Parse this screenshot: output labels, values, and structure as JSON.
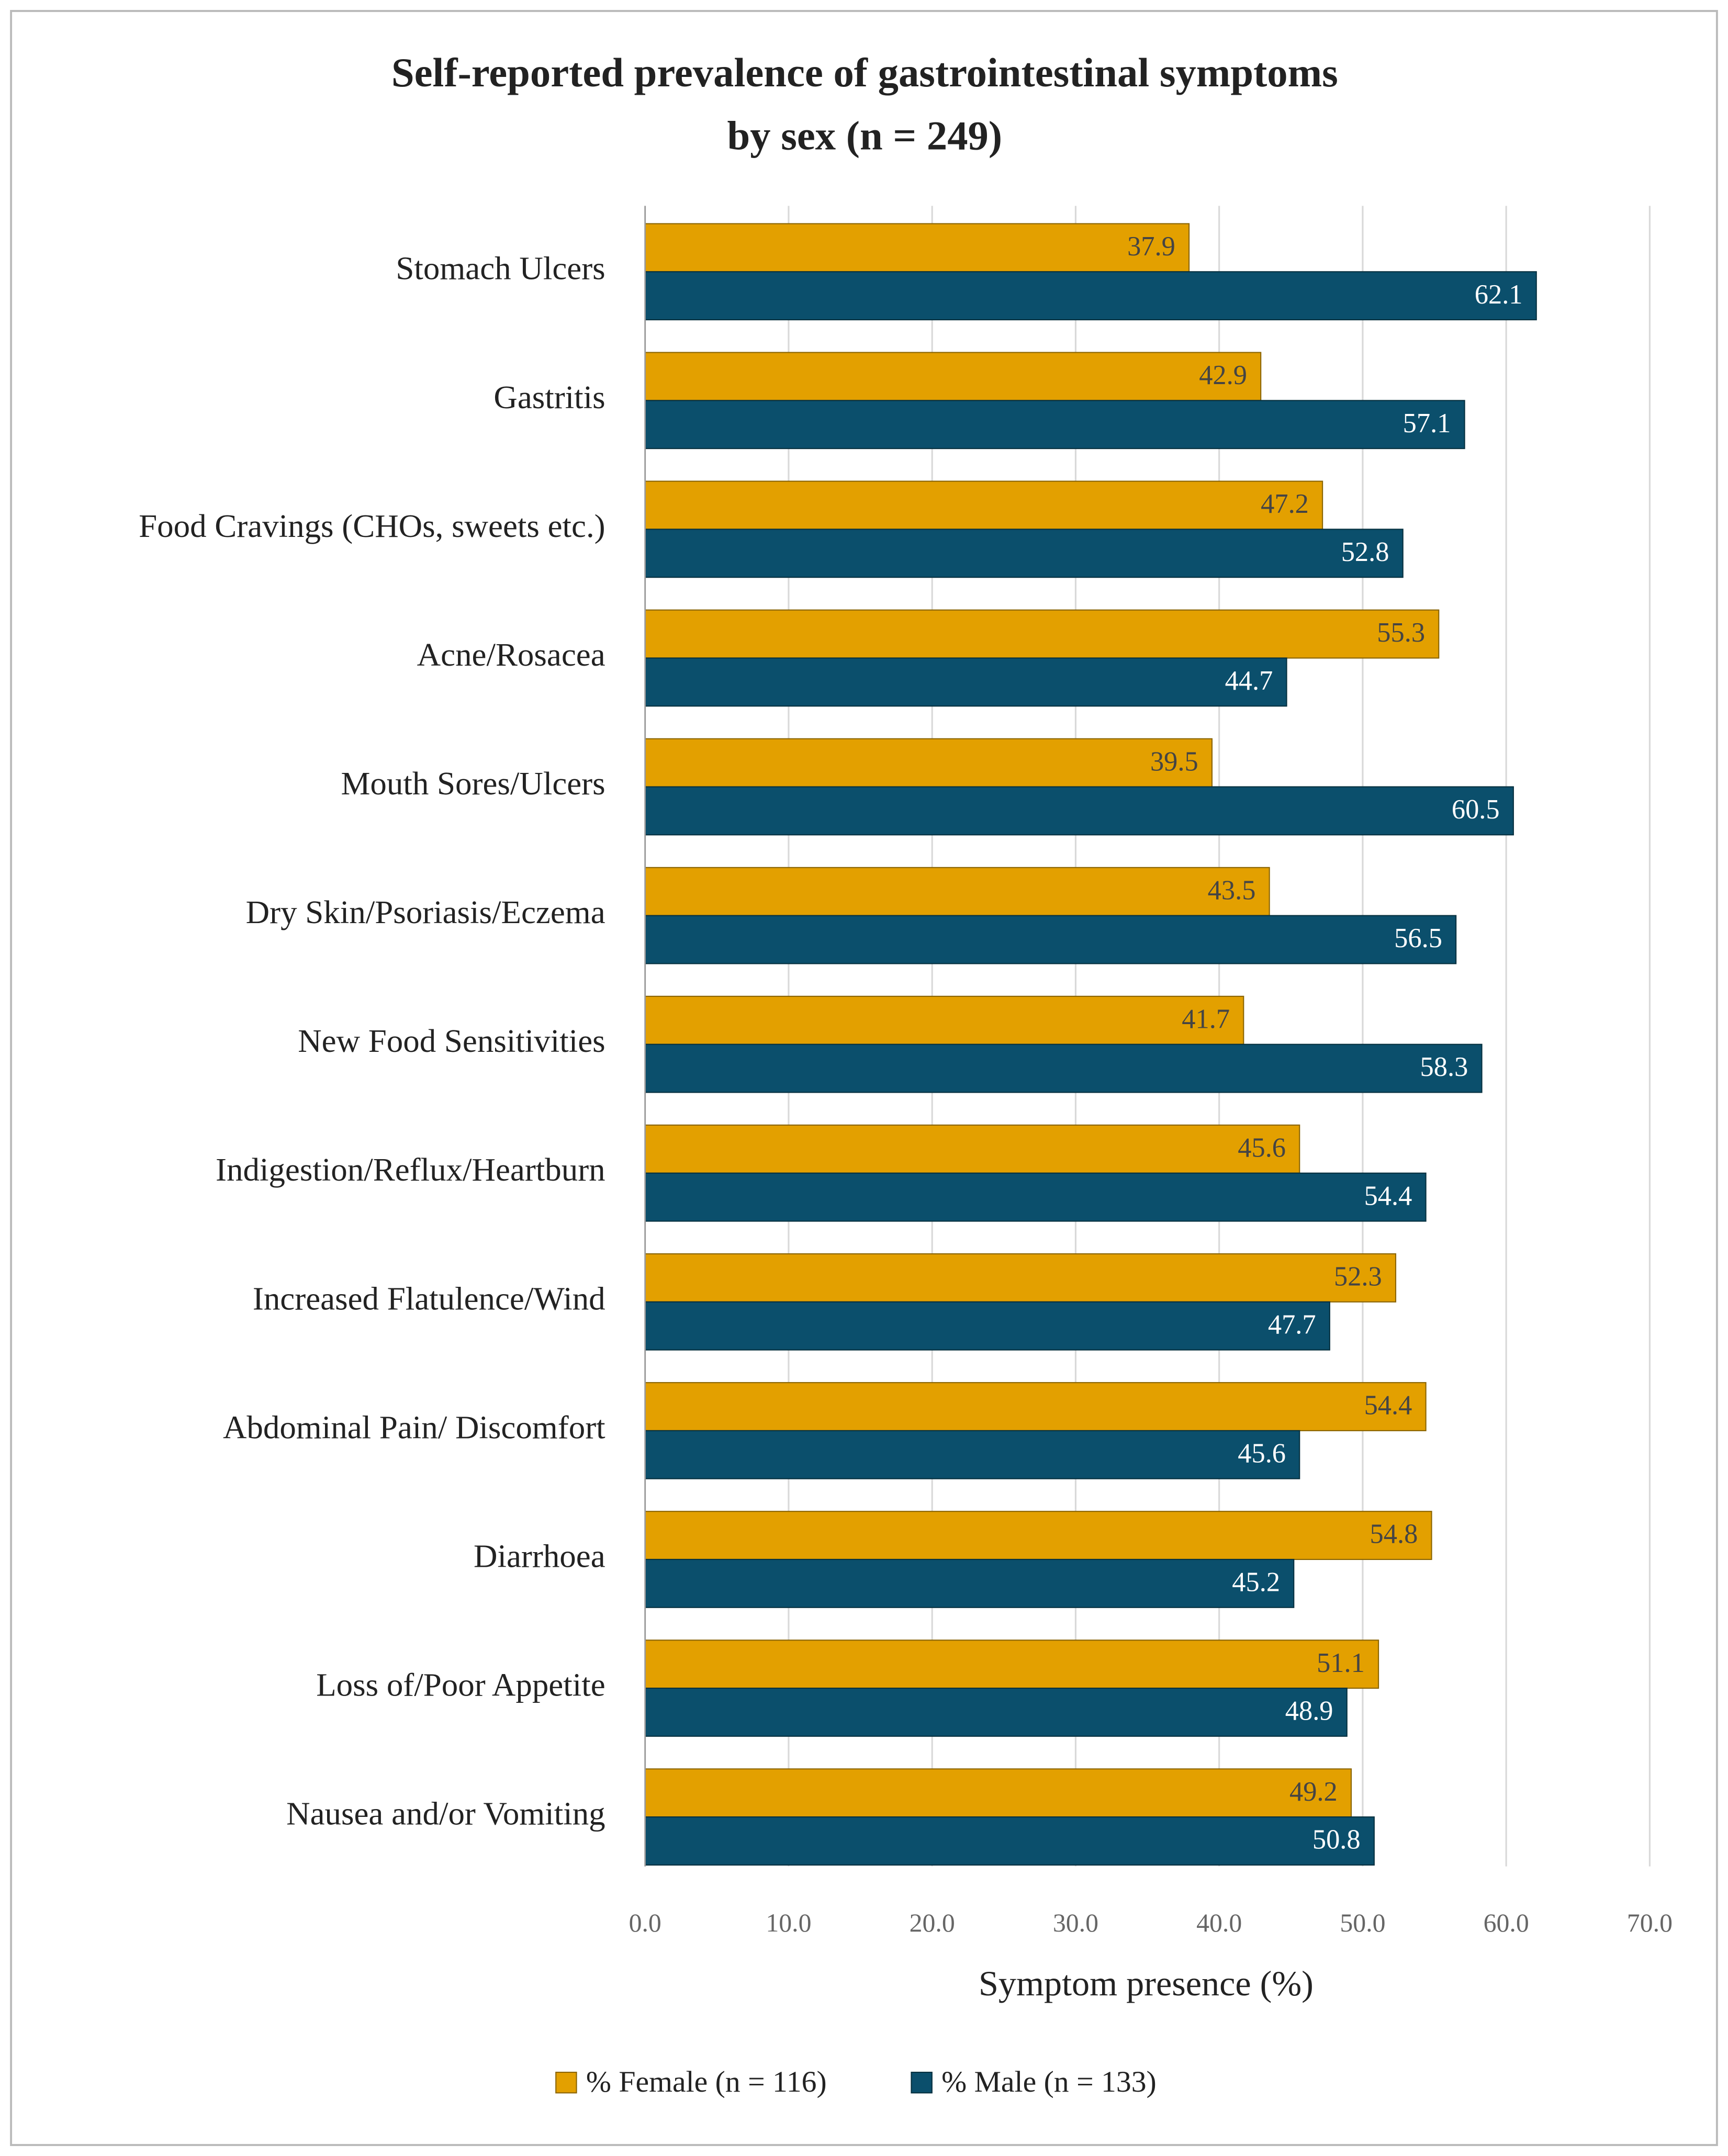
{
  "chart_data": {
    "type": "bar",
    "orientation": "horizontal",
    "title": [
      "Self-reported prevalence of gastrointestinal symptoms",
      "by sex (n = 249)"
    ],
    "x_label": "Symptom presence (%)",
    "categories": [
      "Stomach Ulcers",
      "Gastritis",
      "Food Cravings (CHOs, sweets etc.)",
      "Acne/Rosacea",
      "Mouth Sores/Ulcers",
      "Dry Skin/Psoriasis/Eczema",
      "New Food Sensitivities",
      "Indigestion/Reflux/Heartburn",
      "Increased Flatulence/Wind",
      "Abdominal Pain/ Discomfort",
      "Diarrhoea",
      "Loss of/Poor Appetite",
      "Nausea and/or Vomiting"
    ],
    "series": [
      {
        "name": "% Female (n = 116)",
        "color": "#e3a000",
        "values": [
          37.9,
          42.9,
          47.2,
          55.3,
          39.5,
          43.5,
          41.7,
          45.6,
          52.3,
          54.4,
          54.8,
          51.1,
          49.2
        ]
      },
      {
        "name": "% Male (n = 133)",
        "color": "#0b4f6c",
        "values": [
          62.1,
          57.1,
          52.8,
          44.7,
          60.5,
          56.5,
          58.3,
          54.4,
          47.7,
          45.6,
          45.2,
          48.9,
          50.8
        ]
      }
    ],
    "xlim": [
      0,
      70
    ],
    "xticks": [
      {
        "value": 0,
        "label": "0.0"
      },
      {
        "value": 10,
        "label": "10.0"
      },
      {
        "value": 20,
        "label": "20.0"
      },
      {
        "value": 30,
        "label": "30.0"
      },
      {
        "value": 40,
        "label": "40.0"
      },
      {
        "value": 50,
        "label": "50.0"
      },
      {
        "value": 60,
        "label": "60.0"
      },
      {
        "value": 70,
        "label": "70.0"
      }
    ],
    "grid": true,
    "legend": "bottom"
  }
}
